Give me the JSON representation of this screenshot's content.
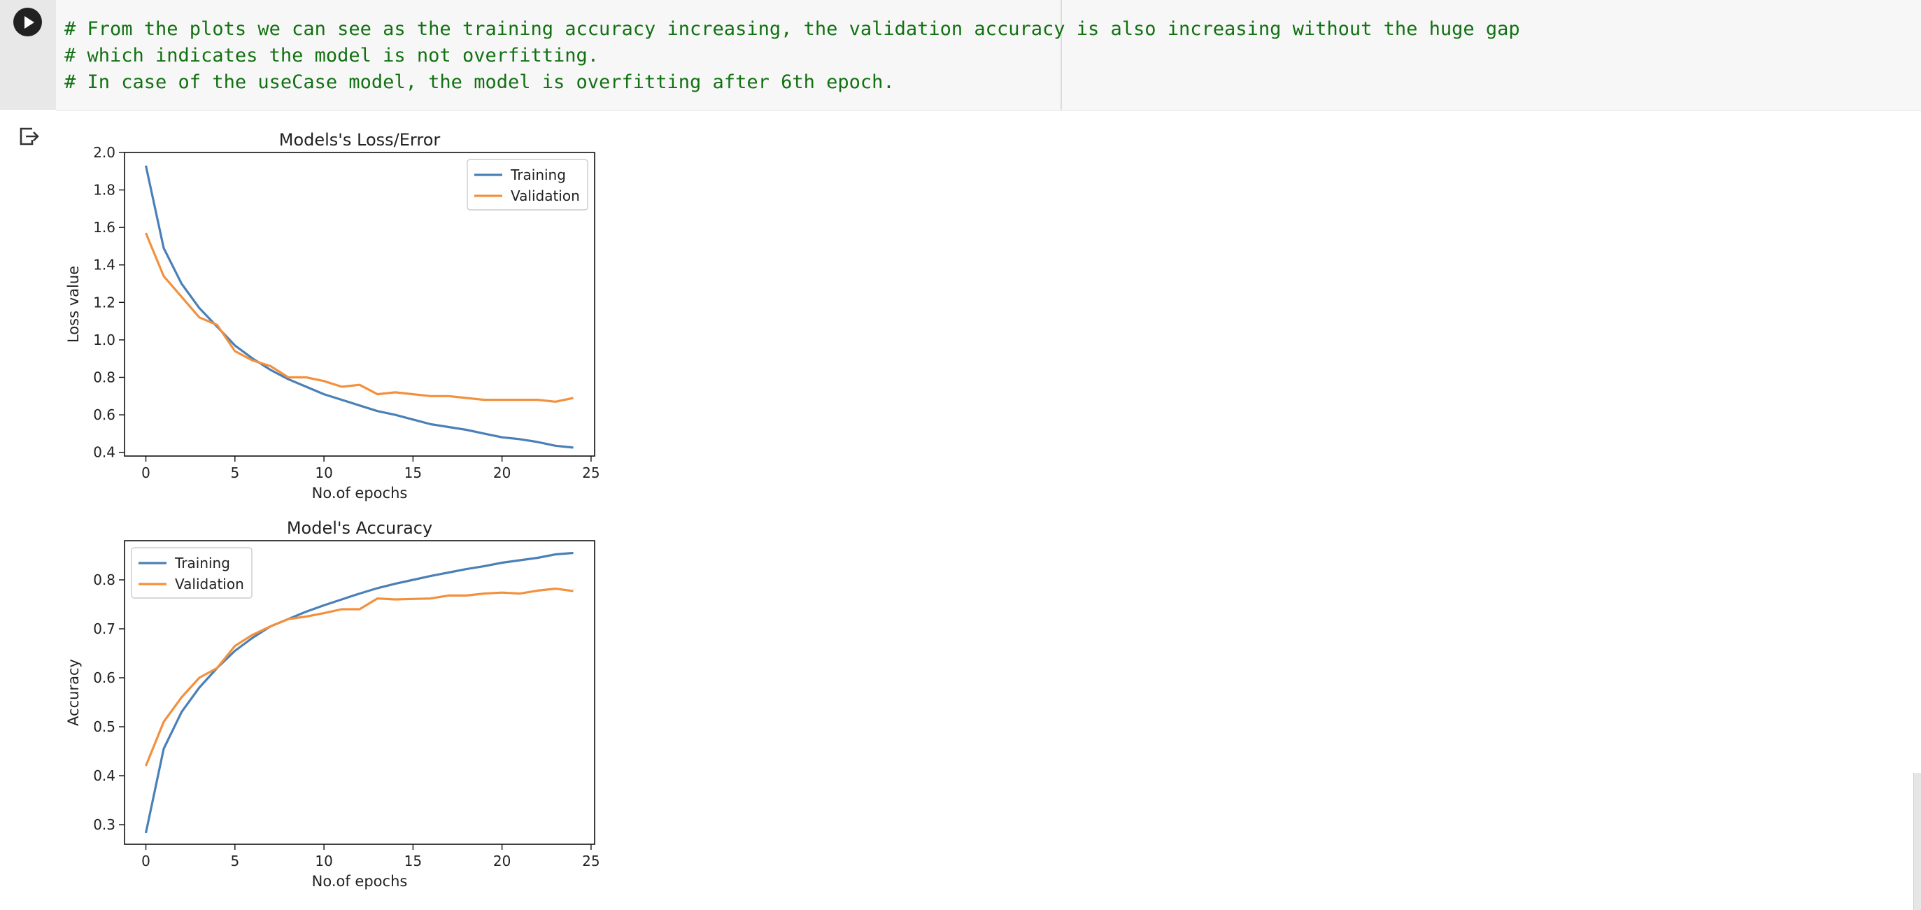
{
  "cell": {
    "code_lines": [
      "# From the plots we can see as the training accuracy increasing, the validation accuracy is also increasing without the huge gap",
      "# which indicates the model is not overfitting.",
      "# In case of the useCase model, the model is overfitting after 6th epoch."
    ],
    "run_icon": "play-icon",
    "output_icon": "output-redirect-icon"
  },
  "colors": {
    "training": "#4a80b7",
    "validation": "#f2913d",
    "code_comment": "#127112"
  },
  "chart_data": [
    {
      "type": "line",
      "title": "Models's Loss/Error",
      "xlabel": "No.of epochs",
      "ylabel": "Loss value",
      "xlim": [
        -1.2,
        25.2
      ],
      "ylim": [
        0.38,
        2.0
      ],
      "xticks": [
        0,
        5,
        10,
        15,
        20,
        25
      ],
      "yticks": [
        0.4,
        0.6,
        0.8,
        1.0,
        1.2,
        1.4,
        1.6,
        1.8,
        2.0
      ],
      "ytick_labels": [
        "0.4",
        "0.6",
        "0.8",
        "1.0",
        "1.2",
        "1.4",
        "1.6",
        "1.8",
        "2.0"
      ],
      "legend": "top-right",
      "x": [
        0,
        1,
        2,
        3,
        4,
        5,
        6,
        7,
        8,
        9,
        10,
        11,
        12,
        13,
        14,
        15,
        16,
        17,
        18,
        19,
        20,
        21,
        22,
        23,
        24
      ],
      "series": [
        {
          "name": "Training",
          "color": "#4a80b7",
          "values": [
            1.93,
            1.49,
            1.3,
            1.17,
            1.07,
            0.97,
            0.9,
            0.84,
            0.79,
            0.75,
            0.71,
            0.68,
            0.65,
            0.62,
            0.6,
            0.575,
            0.55,
            0.535,
            0.52,
            0.5,
            0.48,
            0.47,
            0.455,
            0.435,
            0.425
          ]
        },
        {
          "name": "Validation",
          "color": "#f2913d",
          "values": [
            1.57,
            1.34,
            1.23,
            1.12,
            1.08,
            0.94,
            0.89,
            0.86,
            0.8,
            0.8,
            0.78,
            0.75,
            0.76,
            0.71,
            0.72,
            0.71,
            0.7,
            0.7,
            0.69,
            0.68,
            0.68,
            0.68,
            0.68,
            0.67,
            0.69
          ]
        }
      ]
    },
    {
      "type": "line",
      "title": "Model's Accuracy",
      "xlabel": "No.of epochs",
      "ylabel": "Accuracy",
      "xlim": [
        -1.2,
        25.2
      ],
      "ylim": [
        0.26,
        0.88
      ],
      "xticks": [
        0,
        5,
        10,
        15,
        20,
        25
      ],
      "yticks": [
        0.3,
        0.4,
        0.5,
        0.6,
        0.7,
        0.8
      ],
      "ytick_labels": [
        "0.3",
        "0.4",
        "0.5",
        "0.6",
        "0.7",
        "0.8"
      ],
      "legend": "top-left",
      "x": [
        0,
        1,
        2,
        3,
        4,
        5,
        6,
        7,
        8,
        9,
        10,
        11,
        12,
        13,
        14,
        15,
        16,
        17,
        18,
        19,
        20,
        21,
        22,
        23,
        24
      ],
      "series": [
        {
          "name": "Training",
          "color": "#4a80b7",
          "values": [
            0.283,
            0.455,
            0.53,
            0.58,
            0.62,
            0.655,
            0.682,
            0.705,
            0.72,
            0.735,
            0.748,
            0.76,
            0.772,
            0.783,
            0.792,
            0.8,
            0.808,
            0.815,
            0.822,
            0.828,
            0.835,
            0.84,
            0.845,
            0.852,
            0.855
          ]
        },
        {
          "name": "Validation",
          "color": "#f2913d",
          "values": [
            0.42,
            0.51,
            0.56,
            0.6,
            0.62,
            0.665,
            0.688,
            0.705,
            0.72,
            0.725,
            0.732,
            0.74,
            0.74,
            0.762,
            0.76,
            0.761,
            0.762,
            0.768,
            0.768,
            0.772,
            0.774,
            0.772,
            0.778,
            0.782,
            0.777
          ]
        }
      ]
    }
  ]
}
